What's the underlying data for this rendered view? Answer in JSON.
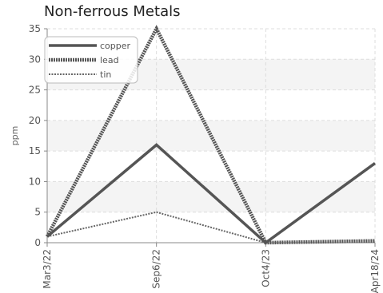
{
  "chart_data": {
    "type": "line",
    "title": "Non-ferrous Metals",
    "xlabel": "",
    "ylabel": "ppm",
    "categories": [
      "Mar3/22",
      "Sep6/22",
      "Oct4/23",
      "Apr18/24"
    ],
    "ylim": [
      0,
      35
    ],
    "yticks": [
      0,
      5,
      10,
      15,
      20,
      25,
      30,
      35
    ],
    "grid": true,
    "legend_position": "top-left",
    "series": [
      {
        "name": "copper",
        "values": [
          1,
          16,
          0,
          13
        ],
        "color": "#555555",
        "style": "solid"
      },
      {
        "name": "lead",
        "values": [
          1,
          35,
          0,
          0.3
        ],
        "color": "#555555",
        "style": "dotted-thick"
      },
      {
        "name": "tin",
        "values": [
          1,
          5,
          0,
          null
        ],
        "color": "#666666",
        "style": "dotted-thin"
      }
    ]
  }
}
